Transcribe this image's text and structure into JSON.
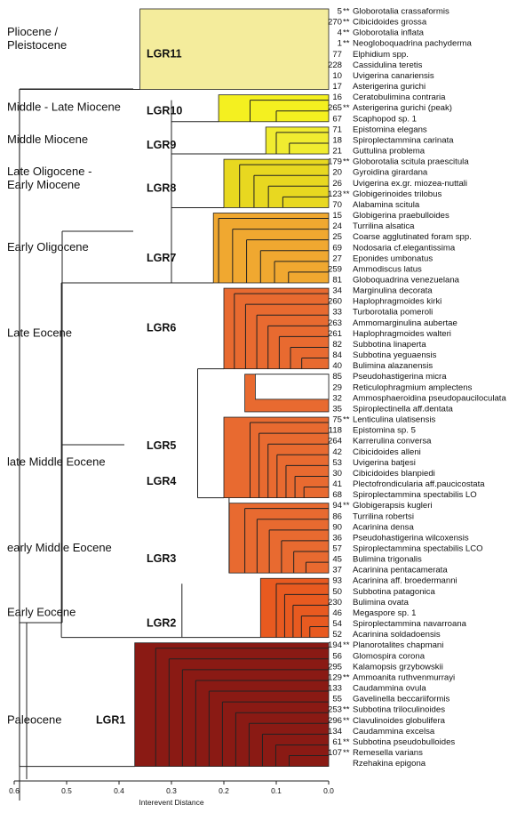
{
  "chart_data": {
    "type": "dendrogram",
    "xlabel": "Interevent Distance",
    "x_ticks": [
      "0.6",
      "0.5",
      "0.4",
      "0.3",
      "0.2",
      "0.1",
      "0.0"
    ],
    "xlim": [
      0.6,
      0.0
    ],
    "colors": {
      "LGR11": "#f4ec9c",
      "LGR10": "#f4f020",
      "LGR9": "#f0ec30",
      "LGR8": "#e8d820",
      "LGR7": "#f0a830",
      "LGR6": "#e86a30",
      "LGR5": "#e86a30",
      "LGR4": "#e86a30",
      "LGR3": "#e86a30",
      "LGR2": "#e85a20",
      "LGR1": "#8a1a14"
    },
    "epochs": [
      {
        "label": "Pliocene /",
        "label2": "Pleistocene"
      },
      {
        "label": "Middle - Late Miocene"
      },
      {
        "label": "Middle Miocene"
      },
      {
        "label": "Late Oligocene -",
        "label2": "Early Miocene"
      },
      {
        "label": "Early Oligocene"
      },
      {
        "label": "Late Eocene"
      },
      {
        "label": "late Middle Eocene"
      },
      {
        "label": "early Middle Eocene"
      },
      {
        "label": "Early Eocene"
      },
      {
        "label": "Paleocene"
      }
    ],
    "groups": [
      {
        "name": "LGR11",
        "distance": 0.36
      },
      {
        "name": "LGR10",
        "distance": 0.21
      },
      {
        "name": "LGR9",
        "distance": 0.12
      },
      {
        "name": "LGR8",
        "distance": 0.2
      },
      {
        "name": "LGR7",
        "distance": 0.22
      },
      {
        "name": "LGR6",
        "distance": 0.2
      },
      {
        "name": "LGR5",
        "distance": 0.16
      },
      {
        "name": "LGR4",
        "distance": 0.2
      },
      {
        "name": "LGR3",
        "distance": 0.19
      },
      {
        "name": "LGR2",
        "distance": 0.13
      },
      {
        "name": "LGR1",
        "distance": 0.37
      }
    ],
    "taxa": [
      {
        "num": "5",
        "star": true,
        "name": "Globorotalia crassaformis"
      },
      {
        "num": "270",
        "star": true,
        "name": "Cibicidoides grossa"
      },
      {
        "num": "4",
        "star": true,
        "name": "Globorotalia inflata"
      },
      {
        "num": "1",
        "star": true,
        "name": "Neogloboquadrina pachyderma"
      },
      {
        "num": "77",
        "star": false,
        "name": "Elphidium spp."
      },
      {
        "num": "228",
        "star": false,
        "name": "Cassidulina teretis"
      },
      {
        "num": "10",
        "star": false,
        "name": "Uvigerina canariensis"
      },
      {
        "num": "17",
        "star": false,
        "name": "Asterigerina gurichi"
      },
      {
        "num": "16",
        "star": false,
        "name": "Ceratobulimina contraria"
      },
      {
        "num": "265",
        "star": true,
        "name": "Asterigerina gurichi (peak)"
      },
      {
        "num": "67",
        "star": false,
        "name": "Scaphopod sp. 1"
      },
      {
        "num": "71",
        "star": false,
        "name": "Epistomina elegans"
      },
      {
        "num": "18",
        "star": false,
        "name": "Spiroplectammina carinata"
      },
      {
        "num": "21",
        "star": false,
        "name": "Guttulina problema"
      },
      {
        "num": "179",
        "star": true,
        "name": "Globorotalia scitula praescitula"
      },
      {
        "num": "20",
        "star": false,
        "name": "Gyroidina girardana"
      },
      {
        "num": "26",
        "star": false,
        "name": "Uvigerina ex.gr. miozea-nuttali"
      },
      {
        "num": "123",
        "star": true,
        "name": "Globigerinoides trilobus"
      },
      {
        "num": "70",
        "star": false,
        "name": "Alabamina scitula"
      },
      {
        "num": "15",
        "star": false,
        "name": "Globigerina praebulloides"
      },
      {
        "num": "24",
        "star": false,
        "name": "Turrilina alsatica"
      },
      {
        "num": "25",
        "star": false,
        "name": "Coarse agglutinated foram spp."
      },
      {
        "num": "69",
        "star": false,
        "name": "Nodosaria cf.elegantissima"
      },
      {
        "num": "27",
        "star": false,
        "name": "Eponides umbonatus"
      },
      {
        "num": "259",
        "star": false,
        "name": "Ammodiscus latus"
      },
      {
        "num": "81",
        "star": false,
        "name": "Globoquadrina venezuelana"
      },
      {
        "num": "34",
        "star": false,
        "name": "Marginulina decorata"
      },
      {
        "num": "260",
        "star": false,
        "name": "Haplophragmoides kirki"
      },
      {
        "num": "33",
        "star": false,
        "name": "Turborotalia pomeroli"
      },
      {
        "num": "263",
        "star": false,
        "name": "Ammomarginulina aubertae"
      },
      {
        "num": "261",
        "star": false,
        "name": "Haplophragmoides walteri"
      },
      {
        "num": "82",
        "star": false,
        "name": "Subbotina linaperta"
      },
      {
        "num": "84",
        "star": false,
        "name": "Subbotina yeguaensis"
      },
      {
        "num": "40",
        "star": false,
        "name": "Bulimina alazanensis"
      },
      {
        "num": "85",
        "star": false,
        "name": "Pseudohastigerina micra"
      },
      {
        "num": "29",
        "star": false,
        "name": "Reticulophragmium amplectens"
      },
      {
        "num": "32",
        "star": false,
        "name": "Ammosphaeroidina pseudopauciloculata"
      },
      {
        "num": "35",
        "star": false,
        "name": "Spiroplectinella aff.dentata"
      },
      {
        "num": "75",
        "star": true,
        "name": "Lenticulina ulatisensis"
      },
      {
        "num": "118",
        "star": false,
        "name": "Epistomina sp. 5"
      },
      {
        "num": "264",
        "star": false,
        "name": "Karrerulina conversa"
      },
      {
        "num": "42",
        "star": false,
        "name": "Cibicidoides alleni"
      },
      {
        "num": "53",
        "star": false,
        "name": "Uvigerina batjesi"
      },
      {
        "num": "30",
        "star": false,
        "name": "Cibicidoides blanpiedi"
      },
      {
        "num": "41",
        "star": false,
        "name": "Plectofrondicularia aff.paucicostata"
      },
      {
        "num": "68",
        "star": false,
        "name": "Spiroplectammina spectabilis LO"
      },
      {
        "num": "94",
        "star": true,
        "name": "Globigerapsis kugleri"
      },
      {
        "num": "86",
        "star": false,
        "name": "Turrilina robertsi"
      },
      {
        "num": "90",
        "star": false,
        "name": "Acarinina densa"
      },
      {
        "num": "36",
        "star": false,
        "name": "Pseudohastigerina wilcoxensis"
      },
      {
        "num": "57",
        "star": false,
        "name": "Spiroplectammina spectabilis LCO"
      },
      {
        "num": "45",
        "star": false,
        "name": "Bulimina trigonalis"
      },
      {
        "num": "37",
        "star": false,
        "name": "Acarinina pentacamerata"
      },
      {
        "num": "93",
        "star": false,
        "name": "Acarinina aff. broedermanni"
      },
      {
        "num": "50",
        "star": false,
        "name": "Subbotina patagonica"
      },
      {
        "num": "230",
        "star": false,
        "name": "Bulimina ovata"
      },
      {
        "num": "46",
        "star": false,
        "name": "Megaspore sp. 1"
      },
      {
        "num": "54",
        "star": false,
        "name": "Spiroplectammina navarroana"
      },
      {
        "num": "52",
        "star": false,
        "name": "Acarinina soldadoensis"
      },
      {
        "num": "194",
        "star": true,
        "name": "Planorotalites chapmani"
      },
      {
        "num": "56",
        "star": false,
        "name": "Glomospira corona"
      },
      {
        "num": "295",
        "star": false,
        "name": "Kalamopsis grzybowskii"
      },
      {
        "num": "129",
        "star": true,
        "name": "Ammoanita ruthvenmurrayi"
      },
      {
        "num": "133",
        "star": false,
        "name": "Caudammina ovula"
      },
      {
        "num": "55",
        "star": false,
        "name": "Gavelinella beccariiformis"
      },
      {
        "num": "253",
        "star": true,
        "name": "Subbotina triloculinoides"
      },
      {
        "num": "296",
        "star": true,
        "name": "Clavulinoides globulifera"
      },
      {
        "num": "134",
        "star": false,
        "name": "Caudammina excelsa"
      },
      {
        "num": "61",
        "star": true,
        "name": "Subbotina pseudobulloides"
      },
      {
        "num": "107",
        "star": true,
        "name": "Remesella varians"
      },
      {
        "num": "",
        "star": false,
        "name": "Rzehakina epigona"
      }
    ]
  }
}
